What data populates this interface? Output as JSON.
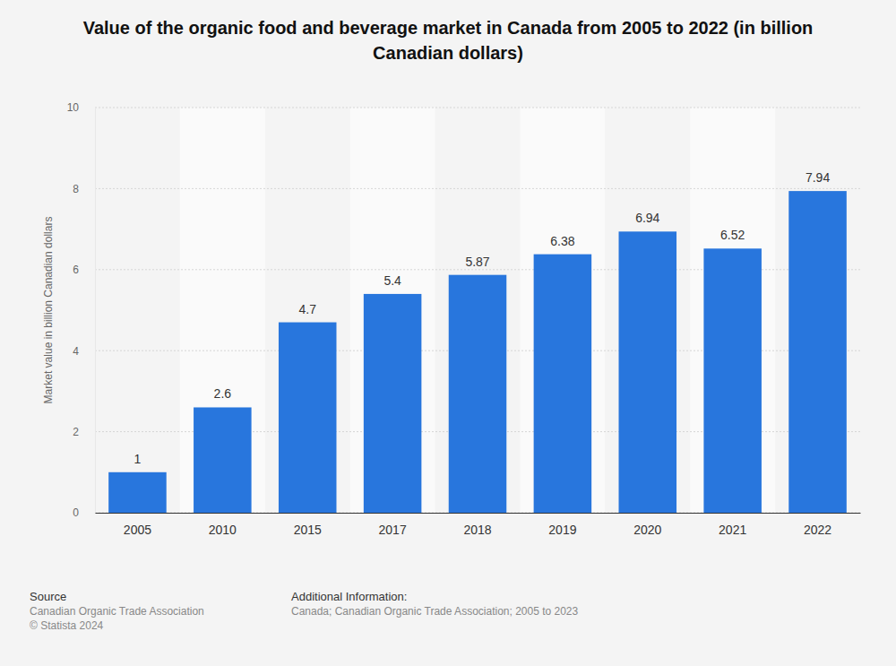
{
  "chart_data": {
    "type": "bar",
    "title": "Value of the organic food and beverage market in Canada from 2005 to 2022 (in billion Canadian dollars)",
    "y_label": "Market value in billion Canadian dollars",
    "categories": [
      "2005",
      "2010",
      "2015",
      "2017",
      "2018",
      "2019",
      "2020",
      "2021",
      "2022"
    ],
    "values": [
      1,
      2.6,
      4.7,
      5.4,
      5.87,
      6.38,
      6.94,
      6.52,
      7.94
    ],
    "color": "#2876dd",
    "ylim": [
      0,
      10
    ],
    "yticks": [
      0,
      2,
      4,
      6,
      8,
      10
    ],
    "grid": true,
    "data_labels": true,
    "source_title": "Source",
    "source": [
      "Canadian Organic Trade Association",
      "© Statista 2024"
    ],
    "additional_info_title": "Additional Information:",
    "additional_info": "Canada; Canadian Organic Trade Association; 2005 to 2023"
  }
}
